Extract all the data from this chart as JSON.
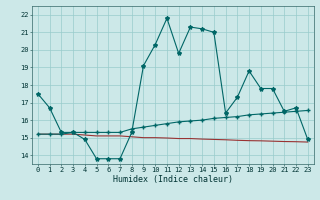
{
  "xlabel": "Humidex (Indice chaleur)",
  "bg_color": "#cce8e8",
  "grid_color": "#99cccc",
  "line_color": "#006666",
  "line_color2": "#993333",
  "x_ticks": [
    0,
    1,
    2,
    3,
    4,
    5,
    6,
    7,
    8,
    9,
    10,
    11,
    12,
    13,
    14,
    15,
    16,
    17,
    18,
    19,
    20,
    21,
    22,
    23
  ],
  "y_ticks": [
    14,
    15,
    16,
    17,
    18,
    19,
    20,
    21,
    22
  ],
  "xlim": [
    -0.5,
    23.5
  ],
  "ylim": [
    13.5,
    22.5
  ],
  "series1_x": [
    0,
    1,
    2,
    3,
    4,
    5,
    6,
    7,
    8,
    9,
    10,
    11,
    12,
    13,
    14,
    15,
    16,
    17,
    18,
    19,
    20,
    21,
    22,
    23
  ],
  "series1_y": [
    17.5,
    16.7,
    15.3,
    15.3,
    14.9,
    13.8,
    13.8,
    13.8,
    15.3,
    19.1,
    20.3,
    21.8,
    19.8,
    21.3,
    21.2,
    21.0,
    16.4,
    17.3,
    18.8,
    17.8,
    17.8,
    16.5,
    16.7,
    14.9
  ],
  "series2_x": [
    0,
    1,
    2,
    3,
    4,
    5,
    6,
    7,
    8,
    9,
    10,
    11,
    12,
    13,
    14,
    15,
    16,
    17,
    18,
    19,
    20,
    21,
    22,
    23
  ],
  "series2_y": [
    15.2,
    15.2,
    15.2,
    15.3,
    15.3,
    15.3,
    15.3,
    15.3,
    15.5,
    15.6,
    15.7,
    15.8,
    15.9,
    15.95,
    16.0,
    16.1,
    16.15,
    16.2,
    16.3,
    16.35,
    16.4,
    16.45,
    16.5,
    16.55
  ],
  "series3_x": [
    0,
    1,
    2,
    3,
    4,
    5,
    6,
    7,
    8,
    9,
    10,
    11,
    12,
    13,
    14,
    15,
    16,
    17,
    18,
    19,
    20,
    21,
    22,
    23
  ],
  "series3_y": [
    15.2,
    15.2,
    15.2,
    15.2,
    15.15,
    15.1,
    15.1,
    15.1,
    15.05,
    15.0,
    15.0,
    14.98,
    14.95,
    14.95,
    14.92,
    14.9,
    14.88,
    14.85,
    14.83,
    14.82,
    14.8,
    14.78,
    14.77,
    14.75
  ],
  "xlabel_fontsize": 6,
  "tick_fontsize": 5
}
